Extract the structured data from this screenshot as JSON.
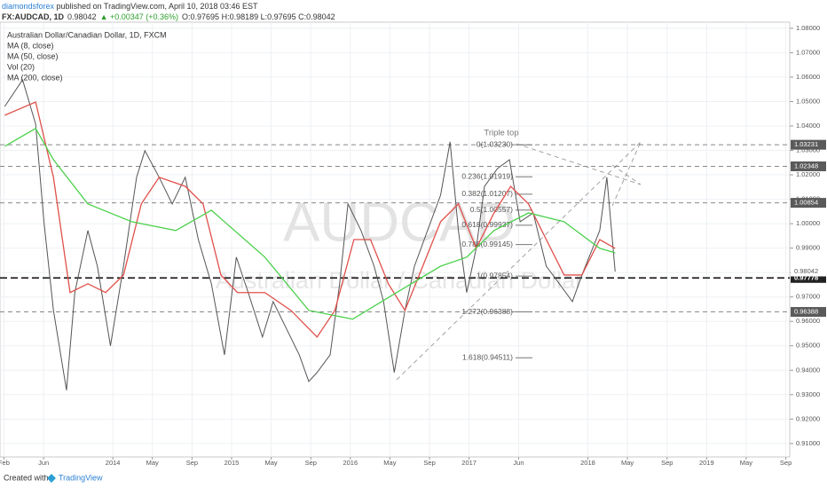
{
  "chart_data": {
    "type": "line",
    "header": {
      "author": "diamondsforex",
      "published": " published on TradingView.com, April 10, 2018 03:46 EST",
      "symbol": "FX:AUDCAD, 1D",
      "last": "0.98042",
      "change": "▲ +0.00347 (+0.36%)",
      "ohlc": "O:0.97695 H:0.98189 L:0.97695 C:0.98042"
    },
    "indicators": [
      "MA (8, close)",
      "Vol (20)"
    ],
    "watermark": "AUDCAD",
    "watermark_subtitle": "Australian Dollar / Canadian Dollar",
    "annotation": "Triple top",
    "footer": {
      "created": "Created with",
      "brand": "TradingView"
    },
    "xlim": [
      2013.05,
      2019.7
    ],
    "xticks": [
      {
        "value": 2013.083,
        "label": "Feb"
      },
      {
        "value": 2013.417,
        "label": "Jun"
      },
      {
        "value": 2014,
        "label": "2014"
      },
      {
        "value": 2014.333,
        "label": "May"
      },
      {
        "value": 2014.667,
        "label": "Sep"
      },
      {
        "value": 2015,
        "label": "2015"
      },
      {
        "value": 2015.333,
        "label": "May"
      },
      {
        "value": 2015.667,
        "label": "Sep"
      },
      {
        "value": 2016,
        "label": "2016"
      },
      {
        "value": 2016.333,
        "label": "May"
      },
      {
        "value": 2016.667,
        "label": "Sep"
      },
      {
        "value": 2017,
        "label": "2017"
      },
      {
        "value": 2017.417,
        "label": "Jun"
      },
      {
        "value": 2018,
        "label": "2018"
      },
      {
        "value": 2018.333,
        "label": "May"
      },
      {
        "value": 2018.667,
        "label": "Sep"
      },
      {
        "value": 2019,
        "label": "2019"
      },
      {
        "value": 2019.333,
        "label": "May"
      },
      {
        "value": 2019.667,
        "label": "Sep"
      }
    ],
    "ylim": [
      0.9045,
      1.0825
    ],
    "yticks": [
      {
        "value": 0.91,
        "label": "0.91000"
      },
      {
        "value": 0.92,
        "label": "0.92000"
      },
      {
        "value": 0.93,
        "label": "0.93000"
      },
      {
        "value": 0.94,
        "label": "0.94000"
      },
      {
        "value": 0.95,
        "label": "0.95000"
      },
      {
        "value": 0.96,
        "label": "0.96000"
      },
      {
        "value": 0.97,
        "label": "0.97000"
      },
      {
        "value": 0.98,
        "label": "0.98000"
      },
      {
        "value": 0.99,
        "label": "0.99000"
      },
      {
        "value": 1.0,
        "label": "1.00000"
      },
      {
        "value": 1.01,
        "label": "1.01000"
      },
      {
        "value": 1.02,
        "label": "1.02000"
      },
      {
        "value": 1.03,
        "label": "1.03000"
      },
      {
        "value": 1.04,
        "label": "1.04000"
      },
      {
        "value": 1.05,
        "label": "1.05000"
      },
      {
        "value": 1.06,
        "label": "1.06000"
      },
      {
        "value": 1.07,
        "label": "1.07000"
      },
      {
        "value": 1.08,
        "label": "1.08000"
      }
    ],
    "grid": true,
    "series": [
      {
        "name": "Australian Dollar/Canadian Dollar, 1D, FXCM",
        "color": "#555555",
        "x": [
          2013.09,
          2013.24,
          2013.35,
          2013.42,
          2013.5,
          2013.61,
          2013.68,
          2013.79,
          2013.87,
          2013.98,
          2014.09,
          2014.2,
          2014.27,
          2014.39,
          2014.5,
          2014.61,
          2014.72,
          2014.83,
          2014.94,
          2015.04,
          2015.14,
          2015.26,
          2015.35,
          2015.46,
          2015.57,
          2015.65,
          2015.72,
          2015.83,
          2015.91,
          2015.98,
          2016.09,
          2016.2,
          2016.28,
          2016.37,
          2016.46,
          2016.54,
          2016.65,
          2016.76,
          2016.84,
          2016.91,
          2016.98,
          2017.06,
          2017.13,
          2017.24,
          2017.34,
          2017.43,
          2017.54,
          2017.65,
          2017.76,
          2017.87,
          2017.95,
          2018.04,
          2018.1,
          2018.16,
          2018.23
        ],
        "values": [
          1.048,
          1.0589,
          1.0408,
          1.0008,
          0.9645,
          0.9318,
          0.9718,
          0.9972,
          0.9826,
          0.95,
          0.9826,
          1.019,
          1.0299,
          1.019,
          1.0081,
          1.019,
          0.9935,
          0.9754,
          0.9463,
          0.9863,
          0.9718,
          0.9536,
          0.9681,
          0.9572,
          0.9463,
          0.9354,
          0.9391,
          0.9463,
          0.9754,
          1.0081,
          0.9972,
          0.9826,
          0.9681,
          0.9391,
          0.9645,
          0.9826,
          0.9972,
          1.0117,
          1.0335,
          0.9972,
          0.9718,
          0.9899,
          1.0153,
          1.0226,
          1.0262,
          1.0008,
          1.0044,
          0.9826,
          0.9754,
          0.9681,
          0.979,
          0.9899,
          0.9972,
          1.019,
          0.9804
        ]
      },
      {
        "name": "MA (50, close)",
        "color": "#e0504a",
        "x": [
          2013.09,
          2013.35,
          2013.5,
          2013.64,
          2013.79,
          2013.94,
          2014.09,
          2014.24,
          2014.39,
          2014.61,
          2014.76,
          2014.91,
          2015.05,
          2015.28,
          2015.5,
          2015.72,
          2015.87,
          2016.03,
          2016.17,
          2016.32,
          2016.46,
          2016.61,
          2016.76,
          2016.91,
          2017.06,
          2017.21,
          2017.35,
          2017.5,
          2017.65,
          2017.8,
          2017.95,
          2018.1,
          2018.23
        ],
        "values": [
          1.0444,
          1.0498,
          1.019,
          0.9718,
          0.9754,
          0.9718,
          0.979,
          1.0081,
          1.019,
          1.0153,
          1.0081,
          0.979,
          0.9718,
          0.9718,
          0.9645,
          0.9536,
          0.9645,
          0.9935,
          0.9935,
          0.9754,
          0.9645,
          0.9826,
          1.0008,
          1.0081,
          0.9899,
          1.0044,
          1.0153,
          1.0081,
          0.9935,
          0.979,
          0.979,
          0.9935,
          0.9899
        ]
      },
      {
        "name": "MA (200, close)",
        "color": "#4cd04c",
        "x": [
          2013.09,
          2013.35,
          2013.5,
          2013.79,
          2014.16,
          2014.53,
          2014.83,
          2015.28,
          2015.65,
          2016.02,
          2016.39,
          2016.76,
          2016.98,
          2017.21,
          2017.5,
          2017.8,
          2018.1,
          2018.23
        ],
        "values": [
          1.0317,
          1.039,
          1.0262,
          1.0081,
          1.0008,
          0.9972,
          1.0055,
          0.9863,
          0.9645,
          0.9609,
          0.9718,
          0.9826,
          0.9863,
          0.9972,
          1.0044,
          1.0008,
          0.9899,
          0.9881
        ]
      }
    ],
    "levels": [
      {
        "value": 1.03231,
        "style": "dashed"
      },
      {
        "value": 1.02348,
        "style": "dashed"
      },
      {
        "value": 1.00854,
        "style": "dashed"
      },
      {
        "value": 0.97778,
        "style": "bold"
      },
      {
        "value": 0.96388,
        "style": "dashed"
      }
    ],
    "last_price": 0.98042,
    "fibonacci": [
      {
        "value": 1.0323,
        "label": "0(1.03230)"
      },
      {
        "value": 1.01919,
        "label": "0.236(1.01919)"
      },
      {
        "value": 1.01207,
        "label": "0.382(1.01207)"
      },
      {
        "value": 1.00557,
        "label": "0.5(1.00557)"
      },
      {
        "value": 0.99937,
        "label": "0.618(0.99937)"
      },
      {
        "value": 0.99145,
        "label": "0.786(0.99145)"
      },
      {
        "value": 0.97854,
        "label": "1(0.97854)"
      },
      {
        "value": 0.96388,
        "label": "1.272(0.96388)"
      },
      {
        "value": 0.94511,
        "label": "1.618(0.94511)"
      }
    ]
  }
}
